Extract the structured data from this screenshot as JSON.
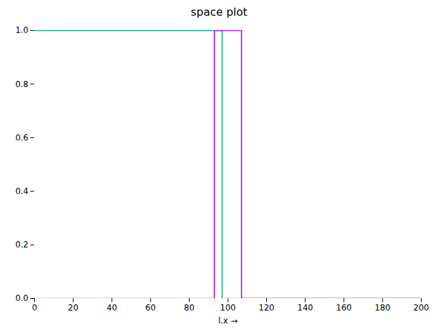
{
  "chart_data": {
    "type": "line",
    "title": "space plot",
    "xlabel": "l.x",
    "series": [
      {
        "color": "#00AA80",
        "x": [
          0,
          97,
          97,
          200
        ],
        "values": [
          1.0,
          1.0,
          0.0,
          0.0
        ]
      },
      {
        "color": "#AA00FF",
        "x": [
          0,
          93,
          93,
          107,
          107,
          200
        ],
        "values": [
          0.0,
          0.0,
          1.0,
          1.0,
          0.0,
          0.0
        ]
      }
    ],
    "xlim": [
      0,
      200
    ],
    "ylim": [
      0.0,
      1.0
    ],
    "xticks": [
      0,
      20,
      40,
      60,
      80,
      100,
      120,
      140,
      160,
      180,
      200
    ],
    "yticks": [
      {
        "value": 0,
        "label": "0.0"
      },
      0.2,
      0.4,
      0.6,
      0.8,
      {
        "value": 1.0,
        "label": "1.0"
      }
    ],
    "grid": false
  }
}
